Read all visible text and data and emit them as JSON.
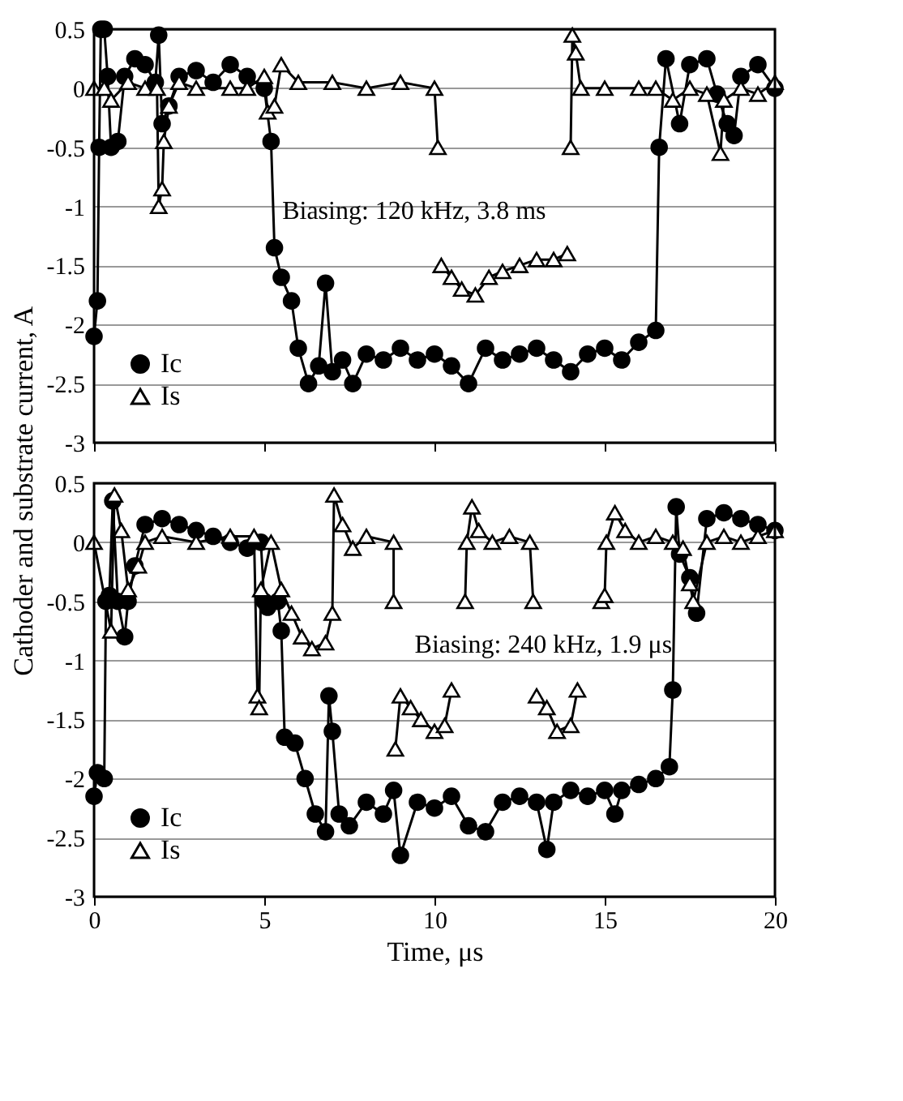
{
  "chart_data": [
    {
      "type": "line",
      "ylabel": "Cathoder and substrate current, A",
      "xlim": [
        0,
        20
      ],
      "xticks": [
        0,
        5,
        10,
        15,
        20
      ],
      "ylim": [
        -3,
        0.5
      ],
      "yticks": [
        -3,
        -2.5,
        -2,
        -1.5,
        -1,
        -0.5,
        0,
        0.5
      ],
      "grid": "y",
      "legend": "bottom left",
      "tick_labels": "y",
      "annotations": [
        "Biasing: 120 kHz, 3.8 ms"
      ],
      "series": [
        {
          "name": "Ic",
          "color": "#000000",
          "marker": "circle",
          "x": [
            0,
            0.1,
            0.15,
            0.2,
            0.3,
            0.4,
            0.5,
            0.7,
            0.9,
            1.2,
            1.5,
            1.8,
            1.9,
            2.0,
            2.2,
            2.5,
            3,
            3.5,
            4,
            4.5,
            5.0,
            5.2,
            5.3,
            5.5,
            5.8,
            6.0,
            6.3,
            6.6,
            6.8,
            7.0,
            7.3,
            7.6,
            8,
            8.5,
            9,
            9.5,
            10,
            10.5,
            11,
            11.5,
            12,
            12.5,
            13,
            13.5,
            14,
            14.5,
            15,
            15.5,
            16,
            16.5,
            16.6,
            16.8,
            17.2,
            17.5,
            18,
            18.3,
            18.6,
            18.8,
            19,
            19.5,
            20
          ],
          "values": [
            -2.1,
            -1.8,
            -0.5,
            0.5,
            0.5,
            0.1,
            -0.5,
            -0.45,
            0.1,
            0.25,
            0.2,
            0.05,
            0.45,
            -0.3,
            -0.15,
            0.1,
            0.15,
            0.05,
            0.2,
            0.1,
            0,
            -0.45,
            -1.35,
            -1.6,
            -1.8,
            -2.2,
            -2.5,
            -2.35,
            -1.65,
            -2.4,
            -2.3,
            -2.5,
            -2.25,
            -2.3,
            -2.2,
            -2.3,
            -2.25,
            -2.35,
            -2.5,
            -2.2,
            -2.3,
            -2.25,
            -2.2,
            -2.3,
            -2.4,
            -2.25,
            -2.2,
            -2.3,
            -2.15,
            -2.05,
            -0.5,
            0.25,
            -0.3,
            0.2,
            0.25,
            -0.05,
            -0.3,
            -0.4,
            0.1,
            0.2,
            0
          ]
        },
        {
          "name": "Is",
          "color": "#000000",
          "marker": "triangle",
          "x": [
            0,
            0.3,
            0.5,
            1,
            1.5,
            1.85,
            1.9,
            2.0,
            2.05,
            2.2,
            2.5,
            3,
            4,
            4.5,
            5.0,
            5.1,
            5.3,
            5.5,
            6,
            7,
            8,
            9,
            10,
            10.1,
            10.15,
            10.2,
            10.5,
            10.8,
            11.2,
            11.6,
            12,
            12.5,
            13,
            13.5,
            13.9,
            13.95,
            14.0,
            14.05,
            14.15,
            14.3,
            15,
            16,
            16.5,
            17,
            17.5,
            18,
            18.4,
            18.5,
            19,
            19.5,
            20
          ],
          "values": [
            0,
            0,
            -0.1,
            0.05,
            0,
            0,
            -1.0,
            -0.85,
            -0.45,
            -0.15,
            0.05,
            0,
            0,
            0,
            0.1,
            -0.2,
            -0.15,
            0.2,
            0.05,
            0.05,
            0,
            0.05,
            0,
            -0.5,
            null,
            -1.5,
            -1.6,
            -1.7,
            -1.75,
            -1.6,
            -1.55,
            -1.5,
            -1.45,
            -1.45,
            -1.4,
            null,
            -0.5,
            0.45,
            0.3,
            0,
            0,
            0,
            0,
            -0.1,
            0,
            -0.05,
            -0.55,
            -0.1,
            0,
            -0.05,
            0.05
          ]
        }
      ]
    },
    {
      "type": "line",
      "xlabel": "Time, μs",
      "xlim": [
        0,
        20
      ],
      "xticks": [
        0,
        5,
        10,
        15,
        20
      ],
      "ylim": [
        -3,
        0.5
      ],
      "yticks": [
        -3,
        -2.5,
        -2,
        -1.5,
        -1,
        -0.5,
        0,
        0.5
      ],
      "grid": "y",
      "legend": "bottom left",
      "annotations": [
        "Biasing: 240 kHz, 1.9 μs"
      ],
      "series": [
        {
          "name": "Ic",
          "color": "#000000",
          "marker": "circle",
          "x": [
            0,
            0.1,
            0.3,
            0.35,
            0.45,
            0.55,
            0.7,
            0.9,
            1.0,
            1.2,
            1.5,
            2,
            2.5,
            3,
            3.5,
            4,
            4.5,
            4.9,
            5.0,
            5.1,
            5.4,
            5.5,
            5.6,
            5.9,
            6.2,
            6.5,
            6.8,
            6.9,
            7.0,
            7.2,
            7.5,
            8,
            8.5,
            8.8,
            9,
            9.5,
            10,
            10.5,
            11,
            11.5,
            12,
            12.5,
            13,
            13.3,
            13.5,
            14,
            14.5,
            15,
            15.3,
            15.5,
            16,
            16.5,
            16.9,
            17.0,
            17.1,
            17.2,
            17.5,
            17.7,
            18,
            18.5,
            19,
            19.5,
            20
          ],
          "values": [
            -2.15,
            -1.95,
            -2.0,
            -0.5,
            -0.45,
            0.35,
            -0.5,
            -0.8,
            -0.5,
            -0.2,
            0.15,
            0.2,
            0.15,
            0.1,
            0.05,
            0,
            -0.05,
            0,
            -0.5,
            -0.55,
            -0.5,
            -0.75,
            -1.65,
            -1.7,
            -2.0,
            -2.3,
            -2.45,
            -1.3,
            -1.6,
            -2.3,
            -2.4,
            -2.2,
            -2.3,
            -2.1,
            -2.65,
            -2.2,
            -2.25,
            -2.15,
            -2.4,
            -2.45,
            -2.2,
            -2.15,
            -2.2,
            -2.6,
            -2.2,
            -2.1,
            -2.15,
            -2.1,
            -2.3,
            -2.1,
            -2.05,
            -2.0,
            -1.9,
            -1.25,
            0.3,
            -0.1,
            -0.3,
            -0.6,
            0.2,
            0.25,
            0.2,
            0.15,
            0.1
          ]
        },
        {
          "name": "Is",
          "color": "#000000",
          "marker": "triangle",
          "x": [
            0,
            0.5,
            0.6,
            0.8,
            1,
            1.3,
            1.5,
            2,
            3,
            4,
            4.7,
            4.8,
            4.85,
            4.9,
            5.2,
            5.5,
            5.8,
            6.1,
            6.4,
            6.8,
            7.0,
            7.05,
            7.3,
            7.6,
            8,
            8.8,
            8.8,
            8.82,
            8.85,
            9.0,
            9.3,
            9.6,
            10,
            10.3,
            10.5,
            10.7,
            10.9,
            10.95,
            11.1,
            11.3,
            11.7,
            12.2,
            12.8,
            12.9,
            12.95,
            13.0,
            13.3,
            13.6,
            14.0,
            14.2,
            14.5,
            14.9,
            15.0,
            15.05,
            15.3,
            15.6,
            16,
            16.5,
            17,
            17.3,
            17.5,
            17.6,
            18,
            18.5,
            19,
            19.5,
            20
          ],
          "values": [
            0,
            -0.75,
            0.4,
            0.1,
            -0.4,
            -0.2,
            0,
            0.05,
            0,
            0.05,
            0.05,
            -1.3,
            -1.4,
            -0.4,
            0,
            -0.4,
            -0.6,
            -0.8,
            -0.9,
            -0.85,
            -0.6,
            0.4,
            0.15,
            -0.05,
            0.05,
            0,
            -0.5,
            null,
            -1.75,
            -1.3,
            -1.4,
            -1.5,
            -1.6,
            -1.55,
            -1.25,
            null,
            -0.5,
            0,
            0.3,
            0.1,
            0,
            0.05,
            0,
            -0.5,
            null,
            -1.3,
            -1.4,
            -1.6,
            -1.55,
            -1.25,
            null,
            -0.5,
            -0.45,
            0,
            0.25,
            0.1,
            0,
            0.05,
            0,
            -0.05,
            -0.35,
            -0.5,
            0,
            0.05,
            0,
            0.05,
            0.1
          ]
        }
      ]
    }
  ]
}
